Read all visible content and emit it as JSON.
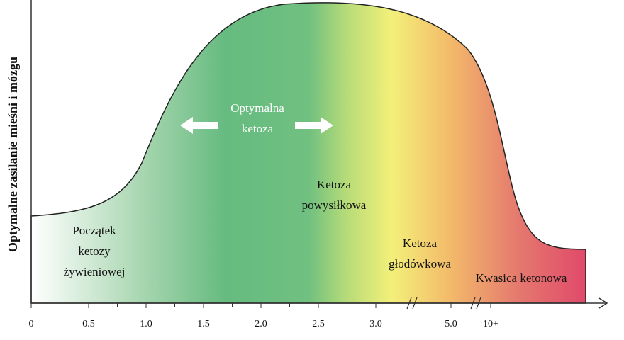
{
  "y_axis_label": "Optymalne zasilanie mieśni i mózgu",
  "x_axis": {
    "ticks": [
      "0",
      "0.5",
      "1.0",
      "1.5",
      "2.0",
      "2.5",
      "3.0",
      "5.0",
      "10+"
    ]
  },
  "zones": [
    {
      "lines": [
        "Początek",
        "ketozy",
        "żywieniowej"
      ]
    },
    {
      "lines": [
        "Optymalna",
        "ketoza"
      ]
    },
    {
      "lines": [
        "Ketoza",
        "powysiłkowa"
      ]
    },
    {
      "lines": [
        "Ketoza",
        "głodówkowa"
      ]
    },
    {
      "lines": [
        "Kwasica ketonowa"
      ]
    }
  ]
}
